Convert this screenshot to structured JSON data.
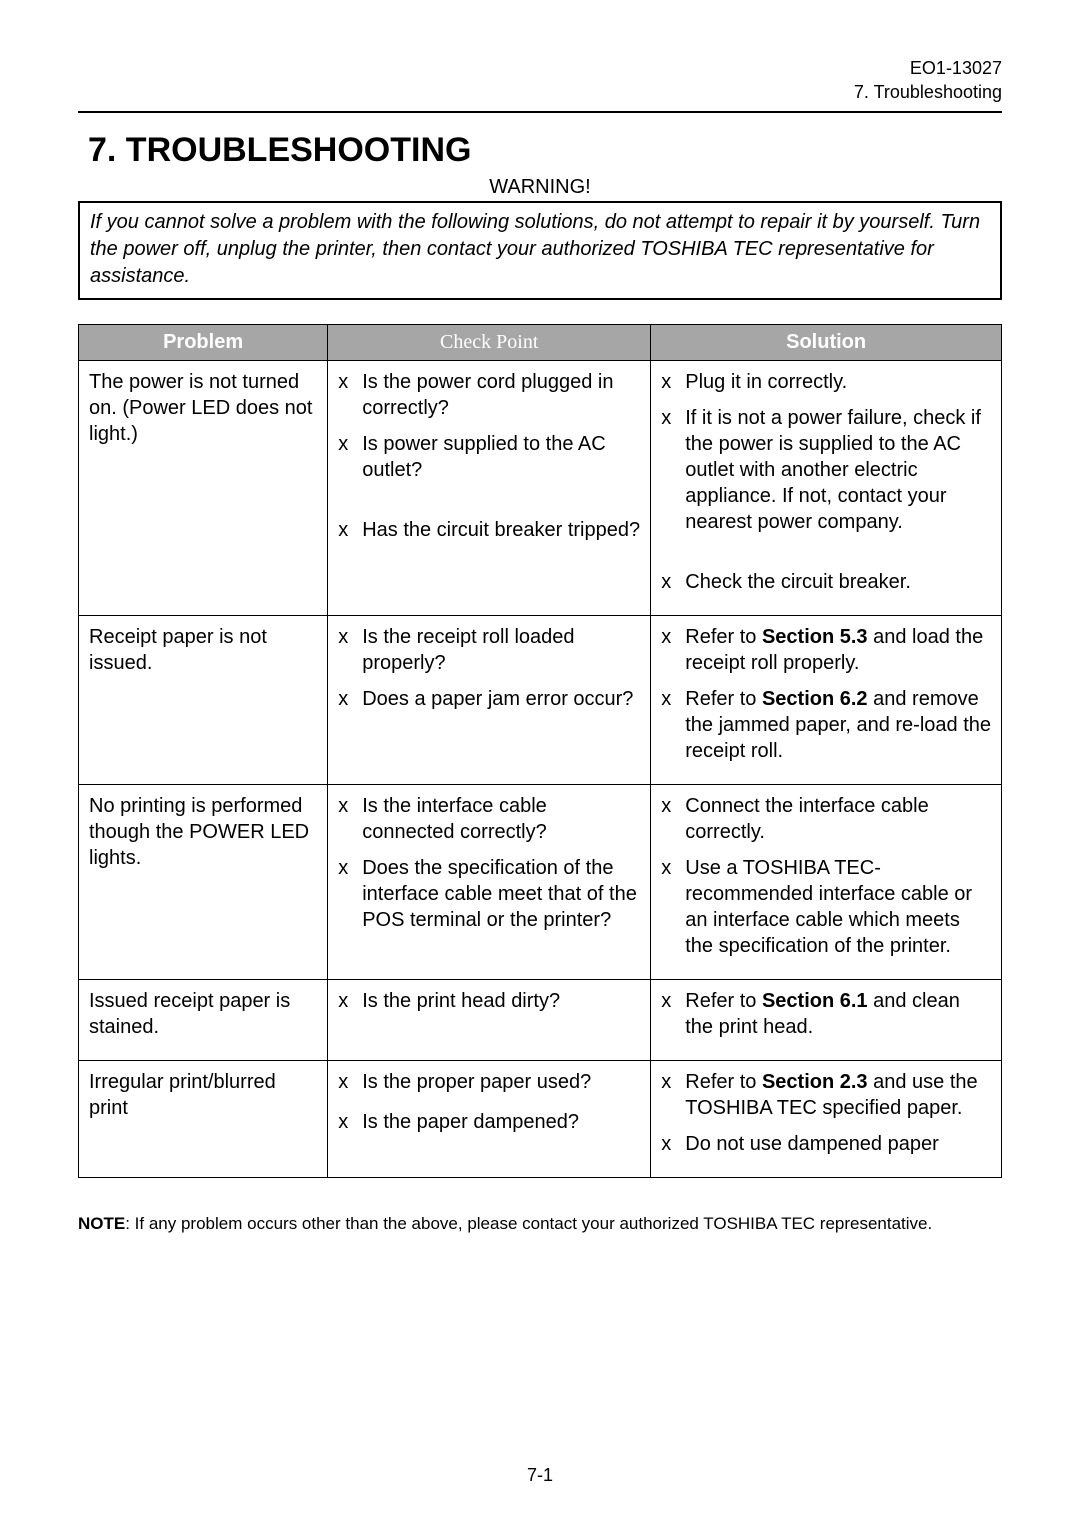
{
  "header": {
    "doc_code": "EO1-13027",
    "doc_section": "7. Troubleshooting"
  },
  "title": "7. TROUBLESHOOTING",
  "warning": {
    "label": "WARNING!",
    "text": "If you cannot solve a problem with the following solutions, do not attempt to repair it by yourself. Turn the power off, unplug the printer, then contact your authorized TOSHIBA TEC representative for assistance."
  },
  "table": {
    "head": {
      "problem": "Problem",
      "check": "Check Point",
      "solution": "Solution"
    },
    "bullet_char": "x",
    "rows": [
      {
        "problem": "The power is not turned on. (Power LED does not light.)",
        "checks": [
          {
            "text": "Is the power cord plugged in correctly?"
          },
          {
            "text": "Is power supplied to the AC outlet?"
          },
          {
            "text": "Has the circuit breaker tripped?",
            "gap_before": true
          }
        ],
        "solutions": [
          {
            "text": "Plug it in correctly."
          },
          {
            "text": "If it is not a power failure, check if the power is supplied to the AC outlet with another electric appliance. If not, contact your nearest power company."
          },
          {
            "text": "Check the circuit breaker.",
            "gap_before": true
          }
        ]
      },
      {
        "problem": "Receipt paper is not issued.",
        "checks": [
          {
            "text": "Is the receipt roll loaded properly?"
          },
          {
            "text": "Does a paper jam error occur?"
          }
        ],
        "solutions": [
          {
            "parts": [
              "Refer to ",
              {
                "b": "Section 5.3"
              },
              " and load the receipt roll properly."
            ]
          },
          {
            "parts": [
              "Refer to ",
              {
                "b": "Section 6.2"
              },
              " and remove the jammed paper, and re-load the receipt roll."
            ]
          }
        ]
      },
      {
        "problem": "No printing is performed though the POWER LED lights.",
        "checks": [
          {
            "text": "Is the interface cable connected correctly?"
          },
          {
            "text": "Does the specification of the interface cable meet that of the POS terminal or the printer?"
          }
        ],
        "solutions": [
          {
            "text": "Connect the interface cable correctly."
          },
          {
            "text": "Use a TOSHIBA TEC-recommended interface cable or an interface cable which meets the specification of the printer."
          }
        ]
      },
      {
        "problem": "Issued receipt paper is stained.",
        "checks": [
          {
            "text": "Is the print head dirty?"
          }
        ],
        "solutions": [
          {
            "parts": [
              "Refer to ",
              {
                "b": "Section 6.1"
              },
              " and clean the print head."
            ]
          }
        ]
      },
      {
        "problem": "Irregular print/blurred print",
        "checks": [
          {
            "text": "Is the proper paper used?"
          },
          {
            "text": "Is the paper dampened?",
            "gap_before_small": true
          }
        ],
        "solutions": [
          {
            "parts": [
              "Refer to ",
              {
                "b": "Section 2.3"
              },
              " and use the TOSHIBA TEC specified paper."
            ]
          },
          {
            "text": "Do not use dampened paper"
          }
        ]
      }
    ]
  },
  "note": {
    "label": "NOTE",
    "text": ": If any problem occurs other than the above, please contact your authorized TOSHIBA TEC representative."
  },
  "footer": {
    "page": "7-1"
  },
  "colors": {
    "header_bg": "#a6a6a6",
    "header_fg": "#ffffff",
    "text": "#000000",
    "page_bg": "#ffffff"
  },
  "fonts": {
    "body": "Arial, Helvetica, sans-serif",
    "check_header": "Times New Roman, Times, serif",
    "title_size_pt": 26,
    "body_size_pt": 15,
    "note_size_pt": 13
  }
}
